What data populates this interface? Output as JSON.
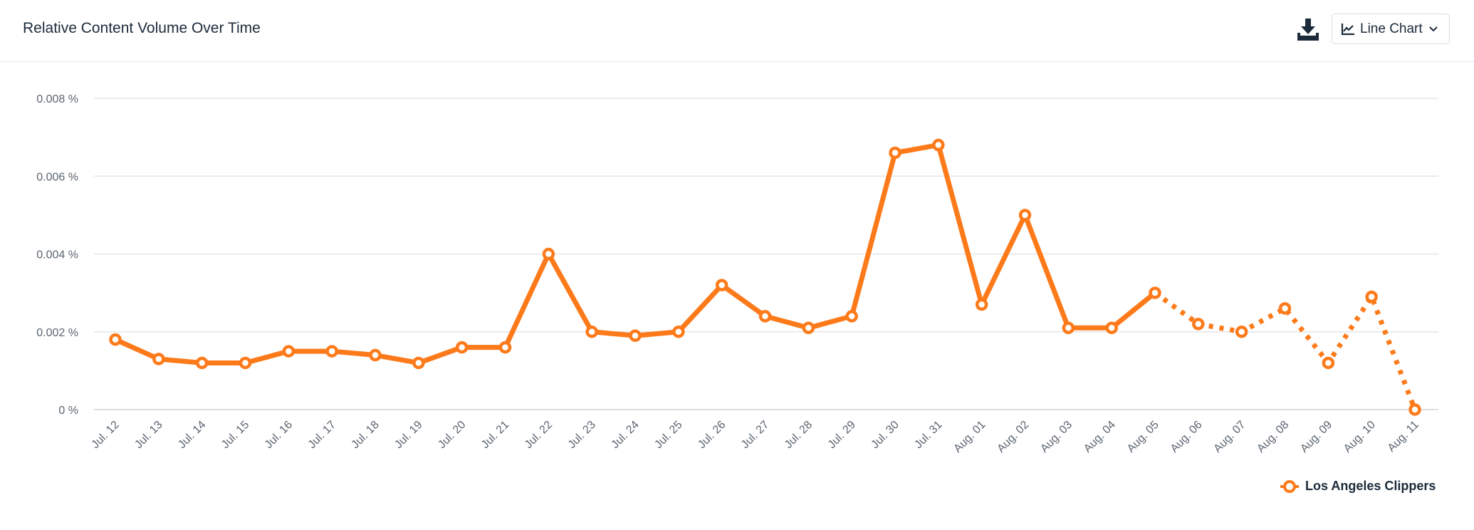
{
  "header": {
    "title": "Relative Content Volume Over Time",
    "chart_type_label": "Line Chart"
  },
  "icons": {
    "download": "download-icon",
    "chart_type": "line-chart-icon",
    "dropdown": "chevron-down-icon"
  },
  "colors": {
    "series": "#fd7a1a",
    "grid": "#e6e6e6",
    "text": "#5a6470"
  },
  "chart_data": {
    "type": "line",
    "title": "Relative Content Volume Over Time",
    "xlabel": "",
    "ylabel": "",
    "categories": [
      "Jul. 12",
      "Jul. 13",
      "Jul. 14",
      "Jul. 15",
      "Jul. 16",
      "Jul. 17",
      "Jul. 18",
      "Jul. 19",
      "Jul. 20",
      "Jul. 21",
      "Jul. 22",
      "Jul. 23",
      "Jul. 24",
      "Jul. 25",
      "Jul. 26",
      "Jul. 27",
      "Jul. 28",
      "Jul. 29",
      "Jul. 30",
      "Jul. 31",
      "Aug. 01",
      "Aug. 02",
      "Aug. 03",
      "Aug. 04",
      "Aug. 05",
      "Aug. 06",
      "Aug. 07",
      "Aug. 08",
      "Aug. 09",
      "Aug. 10",
      "Aug. 11"
    ],
    "yticks": [
      "0 %",
      "0.002 %",
      "0.004 %",
      "0.006 %",
      "0.008 %"
    ],
    "ylim": [
      0,
      0.008
    ],
    "grid": true,
    "legend_position": "bottom-right",
    "series": [
      {
        "name": "Los Angeles Clippers",
        "values": [
          0.0018,
          0.0013,
          0.0012,
          0.0012,
          0.0015,
          0.0015,
          0.0014,
          0.0012,
          0.0016,
          0.0016,
          0.004,
          0.002,
          0.0019,
          0.002,
          0.0032,
          0.0024,
          0.0021,
          0.0024,
          0.0066,
          0.0068,
          0.0027,
          0.005,
          0.0021,
          0.0021,
          0.003,
          0.0022,
          0.002,
          0.0026,
          0.0012,
          0.0029,
          0.0
        ],
        "dashed_from": "Aug. 05"
      }
    ]
  },
  "legend": {
    "items": [
      {
        "label": "Los Angeles Clippers"
      }
    ]
  }
}
